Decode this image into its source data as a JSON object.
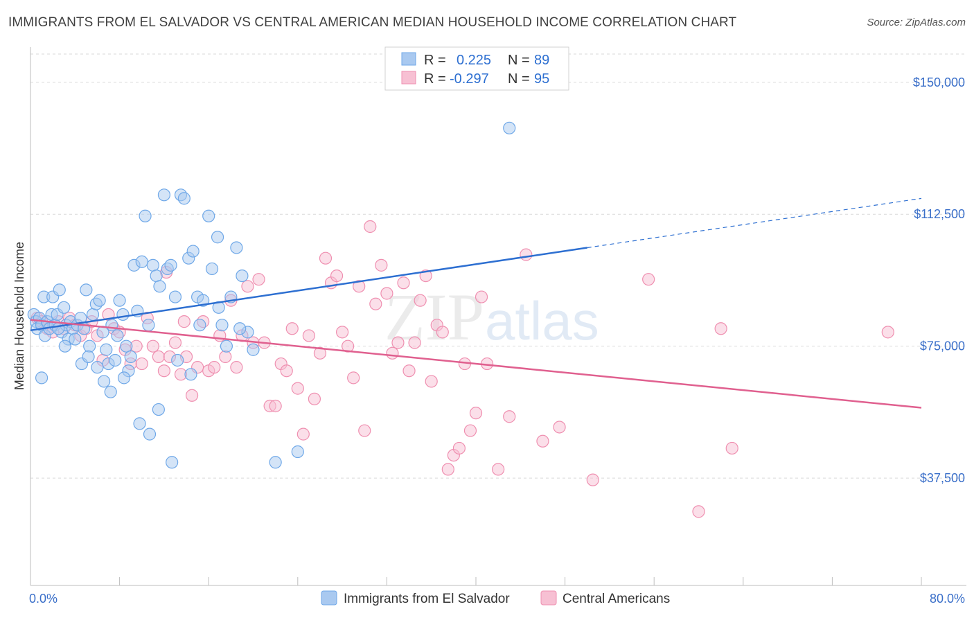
{
  "title": "IMMIGRANTS FROM EL SALVADOR VS CENTRAL AMERICAN MEDIAN HOUSEHOLD INCOME CORRELATION CHART",
  "source": "Source: ZipAtlas.com",
  "chart_data": {
    "type": "scatter",
    "ylabel": "Median Household Income",
    "xlim": [
      0,
      80
    ],
    "ylim": [
      7000,
      160000
    ],
    "y_ticks": [
      37500,
      75000,
      112500,
      150000
    ],
    "y_tick_labels": [
      "$37,500",
      "$75,000",
      "$112,500",
      "$150,000"
    ],
    "x_tick_labels": [
      "0.0%",
      "80.0%"
    ],
    "watermark": {
      "zip": "ZIP",
      "atlas": "atlas"
    },
    "legend_top": [
      {
        "r_label": "R =",
        "r_value": "0.225",
        "n_label": "N =",
        "n_value": "89"
      },
      {
        "r_label": "R =",
        "r_value": "-0.297",
        "n_label": "N =",
        "n_value": "95"
      }
    ],
    "series": [
      {
        "name": "Immigrants from El Salvador",
        "color": "#6fa8e8",
        "fill": "#a9c9f0",
        "line_color": "#2d6fd1",
        "trend": {
          "x0": 0,
          "y0": 79500,
          "x1": 50,
          "y1": 103000,
          "dash_x1": 80,
          "dash_y1": 117000
        },
        "points": [
          [
            0.3,
            84
          ],
          [
            0.5,
            82
          ],
          [
            0.6,
            80
          ],
          [
            0.8,
            83
          ],
          [
            1.0,
            81
          ],
          [
            1.2,
            89
          ],
          [
            1.3,
            78
          ],
          [
            1.5,
            82
          ],
          [
            1.7,
            80
          ],
          [
            1.9,
            84
          ],
          [
            2.0,
            89
          ],
          [
            2.2,
            81
          ],
          [
            2.4,
            84
          ],
          [
            2.6,
            91
          ],
          [
            2.8,
            79
          ],
          [
            3.0,
            86
          ],
          [
            3.2,
            81
          ],
          [
            3.4,
            77
          ],
          [
            3.6,
            82
          ],
          [
            3.8,
            80
          ],
          [
            4.0,
            77
          ],
          [
            4.2,
            81
          ],
          [
            4.5,
            83
          ],
          [
            4.8,
            80
          ],
          [
            5.0,
            91
          ],
          [
            5.3,
            75
          ],
          [
            5.6,
            84
          ],
          [
            5.9,
            87
          ],
          [
            6.2,
            88
          ],
          [
            6.5,
            79
          ],
          [
            6.8,
            74
          ],
          [
            7.0,
            70
          ],
          [
            7.3,
            81
          ],
          [
            7.6,
            71
          ],
          [
            8.0,
            88
          ],
          [
            8.3,
            84
          ],
          [
            8.6,
            75
          ],
          [
            9.0,
            72
          ],
          [
            9.3,
            98
          ],
          [
            9.6,
            85
          ],
          [
            10.0,
            99
          ],
          [
            10.3,
            112
          ],
          [
            10.6,
            81
          ],
          [
            11.0,
            98
          ],
          [
            11.3,
            95
          ],
          [
            11.6,
            92
          ],
          [
            12.0,
            118
          ],
          [
            12.3,
            97
          ],
          [
            12.6,
            98
          ],
          [
            13.0,
            89
          ],
          [
            13.5,
            118
          ],
          [
            13.8,
            117
          ],
          [
            14.2,
            100
          ],
          [
            14.6,
            102
          ],
          [
            15.0,
            89
          ],
          [
            15.5,
            88
          ],
          [
            16.0,
            112
          ],
          [
            16.3,
            97
          ],
          [
            16.8,
            106
          ],
          [
            17.2,
            81
          ],
          [
            17.6,
            75
          ],
          [
            18.0,
            89
          ],
          [
            18.5,
            103
          ],
          [
            19.0,
            95
          ],
          [
            19.5,
            79
          ],
          [
            20.0,
            74
          ],
          [
            1.0,
            66
          ],
          [
            2.5,
            80
          ],
          [
            3.1,
            75
          ],
          [
            4.6,
            70
          ],
          [
            5.2,
            72
          ],
          [
            6.0,
            69
          ],
          [
            6.6,
            65
          ],
          [
            7.2,
            62
          ],
          [
            8.8,
            68
          ],
          [
            9.8,
            53
          ],
          [
            11.5,
            57
          ],
          [
            12.7,
            42
          ],
          [
            14.4,
            67
          ],
          [
            15.2,
            81
          ],
          [
            16.9,
            86
          ],
          [
            18.8,
            80
          ],
          [
            22.0,
            42
          ],
          [
            24.0,
            45
          ],
          [
            43.0,
            137
          ],
          [
            10.7,
            50
          ],
          [
            8.4,
            66
          ],
          [
            13.2,
            71
          ],
          [
            7.8,
            78
          ]
        ]
      },
      {
        "name": "Central Americans",
        "color": "#ef8fb0",
        "fill": "#f7c0d3",
        "line_color": "#e0608f",
        "trend": {
          "x0": 0,
          "y0": 82500,
          "x1": 80,
          "y1": 57500
        },
        "points": [
          [
            0.6,
            83
          ],
          [
            1.0,
            82
          ],
          [
            1.5,
            80
          ],
          [
            2.0,
            79
          ],
          [
            2.5,
            82
          ],
          [
            3.0,
            80
          ],
          [
            3.5,
            83
          ],
          [
            4.0,
            81
          ],
          [
            4.5,
            78
          ],
          [
            5.0,
            80
          ],
          [
            5.5,
            82
          ],
          [
            6.0,
            78
          ],
          [
            6.5,
            71
          ],
          [
            7.0,
            84
          ],
          [
            7.5,
            80
          ],
          [
            8.0,
            79
          ],
          [
            8.5,
            74
          ],
          [
            9.0,
            70
          ],
          [
            9.5,
            75
          ],
          [
            10.0,
            70
          ],
          [
            10.5,
            83
          ],
          [
            11.0,
            75
          ],
          [
            11.5,
            72
          ],
          [
            12.0,
            68
          ],
          [
            12.5,
            72
          ],
          [
            13.0,
            76
          ],
          [
            13.5,
            67
          ],
          [
            14.0,
            72
          ],
          [
            14.5,
            61
          ],
          [
            15.0,
            69
          ],
          [
            15.5,
            82
          ],
          [
            16.0,
            68
          ],
          [
            16.5,
            69
          ],
          [
            17.0,
            78
          ],
          [
            17.5,
            72
          ],
          [
            18.0,
            88
          ],
          [
            18.5,
            69
          ],
          [
            19.0,
            78
          ],
          [
            19.5,
            92
          ],
          [
            20.0,
            76
          ],
          [
            20.5,
            94
          ],
          [
            21.0,
            76
          ],
          [
            21.5,
            58
          ],
          [
            22.0,
            58
          ],
          [
            22.5,
            70
          ],
          [
            23.0,
            68
          ],
          [
            23.5,
            80
          ],
          [
            24.0,
            63
          ],
          [
            24.5,
            50
          ],
          [
            25.0,
            78
          ],
          [
            25.5,
            60
          ],
          [
            26.0,
            73
          ],
          [
            26.5,
            100
          ],
          [
            27.0,
            93
          ],
          [
            27.5,
            95
          ],
          [
            28.0,
            79
          ],
          [
            28.5,
            75
          ],
          [
            29.0,
            66
          ],
          [
            29.5,
            92
          ],
          [
            30.0,
            51
          ],
          [
            30.5,
            109
          ],
          [
            31.0,
            87
          ],
          [
            31.5,
            98
          ],
          [
            32.0,
            90
          ],
          [
            32.5,
            73
          ],
          [
            33.0,
            76
          ],
          [
            33.5,
            93
          ],
          [
            34.0,
            68
          ],
          [
            34.5,
            76
          ],
          [
            35.0,
            88
          ],
          [
            35.5,
            95
          ],
          [
            36.0,
            65
          ],
          [
            36.5,
            81
          ],
          [
            37.0,
            79
          ],
          [
            37.5,
            40
          ],
          [
            38.0,
            44
          ],
          [
            38.5,
            46
          ],
          [
            39.0,
            70
          ],
          [
            39.5,
            51
          ],
          [
            40.0,
            56
          ],
          [
            40.5,
            89
          ],
          [
            41.0,
            70
          ],
          [
            42.0,
            40
          ],
          [
            43.0,
            55
          ],
          [
            44.5,
            101
          ],
          [
            46.0,
            48
          ],
          [
            47.5,
            52
          ],
          [
            50.5,
            37
          ],
          [
            55.5,
            94
          ],
          [
            60.0,
            28
          ],
          [
            62.0,
            80
          ],
          [
            63.0,
            46
          ],
          [
            77.0,
            79
          ],
          [
            12.2,
            96
          ],
          [
            13.8,
            82
          ]
        ]
      }
    ]
  }
}
